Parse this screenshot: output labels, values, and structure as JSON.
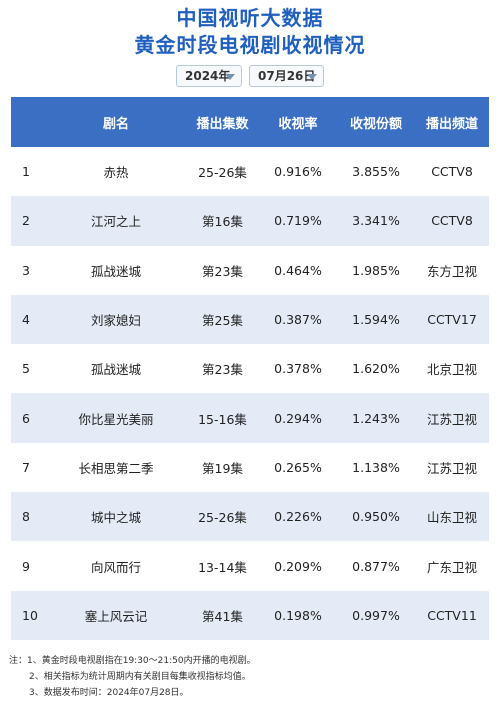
{
  "header": {
    "title_line1": "中国视听大数据",
    "title_line2": "黄金时段电视剧收视情况"
  },
  "filters": {
    "year": "2024年",
    "date": "07月26日"
  },
  "table": {
    "columns": [
      "",
      "剧名",
      "播出集数",
      "收视率",
      "收视份额",
      "播出频道"
    ],
    "rows": [
      {
        "rank": "1",
        "name": "赤热",
        "episodes": "25-26集",
        "rating": "0.916%",
        "share": "3.855%",
        "channel": "CCTV8"
      },
      {
        "rank": "2",
        "name": "江河之上",
        "episodes": "第16集",
        "rating": "0.719%",
        "share": "3.341%",
        "channel": "CCTV8"
      },
      {
        "rank": "3",
        "name": "孤战迷城",
        "episodes": "第23集",
        "rating": "0.464%",
        "share": "1.985%",
        "channel": "东方卫视"
      },
      {
        "rank": "4",
        "name": "刘家媳妇",
        "episodes": "第25集",
        "rating": "0.387%",
        "share": "1.594%",
        "channel": "CCTV17"
      },
      {
        "rank": "5",
        "name": "孤战迷城",
        "episodes": "第23集",
        "rating": "0.378%",
        "share": "1.620%",
        "channel": "北京卫视"
      },
      {
        "rank": "6",
        "name": "你比星光美丽",
        "episodes": "15-16集",
        "rating": "0.294%",
        "share": "1.243%",
        "channel": "江苏卫视"
      },
      {
        "rank": "7",
        "name": "长相思第二季",
        "episodes": "第19集",
        "rating": "0.265%",
        "share": "1.138%",
        "channel": "江苏卫视"
      },
      {
        "rank": "8",
        "name": "城中之城",
        "episodes": "25-26集",
        "rating": "0.226%",
        "share": "0.950%",
        "channel": "山东卫视"
      },
      {
        "rank": "9",
        "name": "向风而行",
        "episodes": "13-14集",
        "rating": "0.209%",
        "share": "0.877%",
        "channel": "广东卫视"
      },
      {
        "rank": "10",
        "name": "塞上风云记",
        "episodes": "第41集",
        "rating": "0.198%",
        "share": "0.997%",
        "channel": "CCTV11"
      }
    ]
  },
  "notes": [
    "注：1、黄金时段电视剧指在19:30～21:50内开播的电视剧。",
    "2、相关指标为统计周期内有关剧目每集收视指标均值。",
    "3、数据发布时间：2024年07月28日。"
  ],
  "colors": {
    "title": "#1f5fbf",
    "header_bg": "#3b6fc4",
    "row_alt": "#e4ebf7"
  }
}
